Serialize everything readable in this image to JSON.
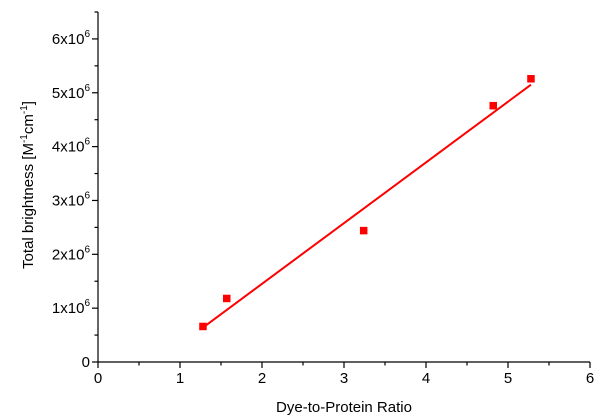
{
  "chart_data": {
    "type": "scatter",
    "xlabel": "Dye-to-Protein Ratio",
    "ylabel": {
      "main": "Total brightness [M",
      "sup1": "-1",
      "mid": "cm",
      "sup2": "-1",
      "end": "]"
    },
    "xlim": [
      0,
      6
    ],
    "ylim": [
      0,
      6500000
    ],
    "x_ticks": [
      0,
      1,
      2,
      3,
      4,
      5,
      6
    ],
    "x_tick_labels": [
      "0",
      "1",
      "2",
      "3",
      "4",
      "5",
      "6"
    ],
    "y_ticks": [
      0,
      1000000,
      2000000,
      3000000,
      4000000,
      5000000,
      6000000
    ],
    "y_tick_labels": [
      {
        "base": "0",
        "exp": ""
      },
      {
        "base": "1x10",
        "exp": "6"
      },
      {
        "base": "2x10",
        "exp": "6"
      },
      {
        "base": "3x10",
        "exp": "6"
      },
      {
        "base": "4x10",
        "exp": "6"
      },
      {
        "base": "5x10",
        "exp": "6"
      },
      {
        "base": "6x10",
        "exp": "6"
      }
    ],
    "x_minor_step": 0.5,
    "y_minor_step": 500000,
    "grid": false,
    "color": "#ff0000",
    "points": [
      {
        "x": 1.28,
        "y": 660000
      },
      {
        "x": 1.57,
        "y": 1180000
      },
      {
        "x": 3.24,
        "y": 2440000
      },
      {
        "x": 4.82,
        "y": 4760000
      },
      {
        "x": 5.28,
        "y": 5260000
      }
    ],
    "fit_line": {
      "x": [
        1.28,
        5.28
      ],
      "y": [
        640000,
        5150000
      ]
    }
  }
}
